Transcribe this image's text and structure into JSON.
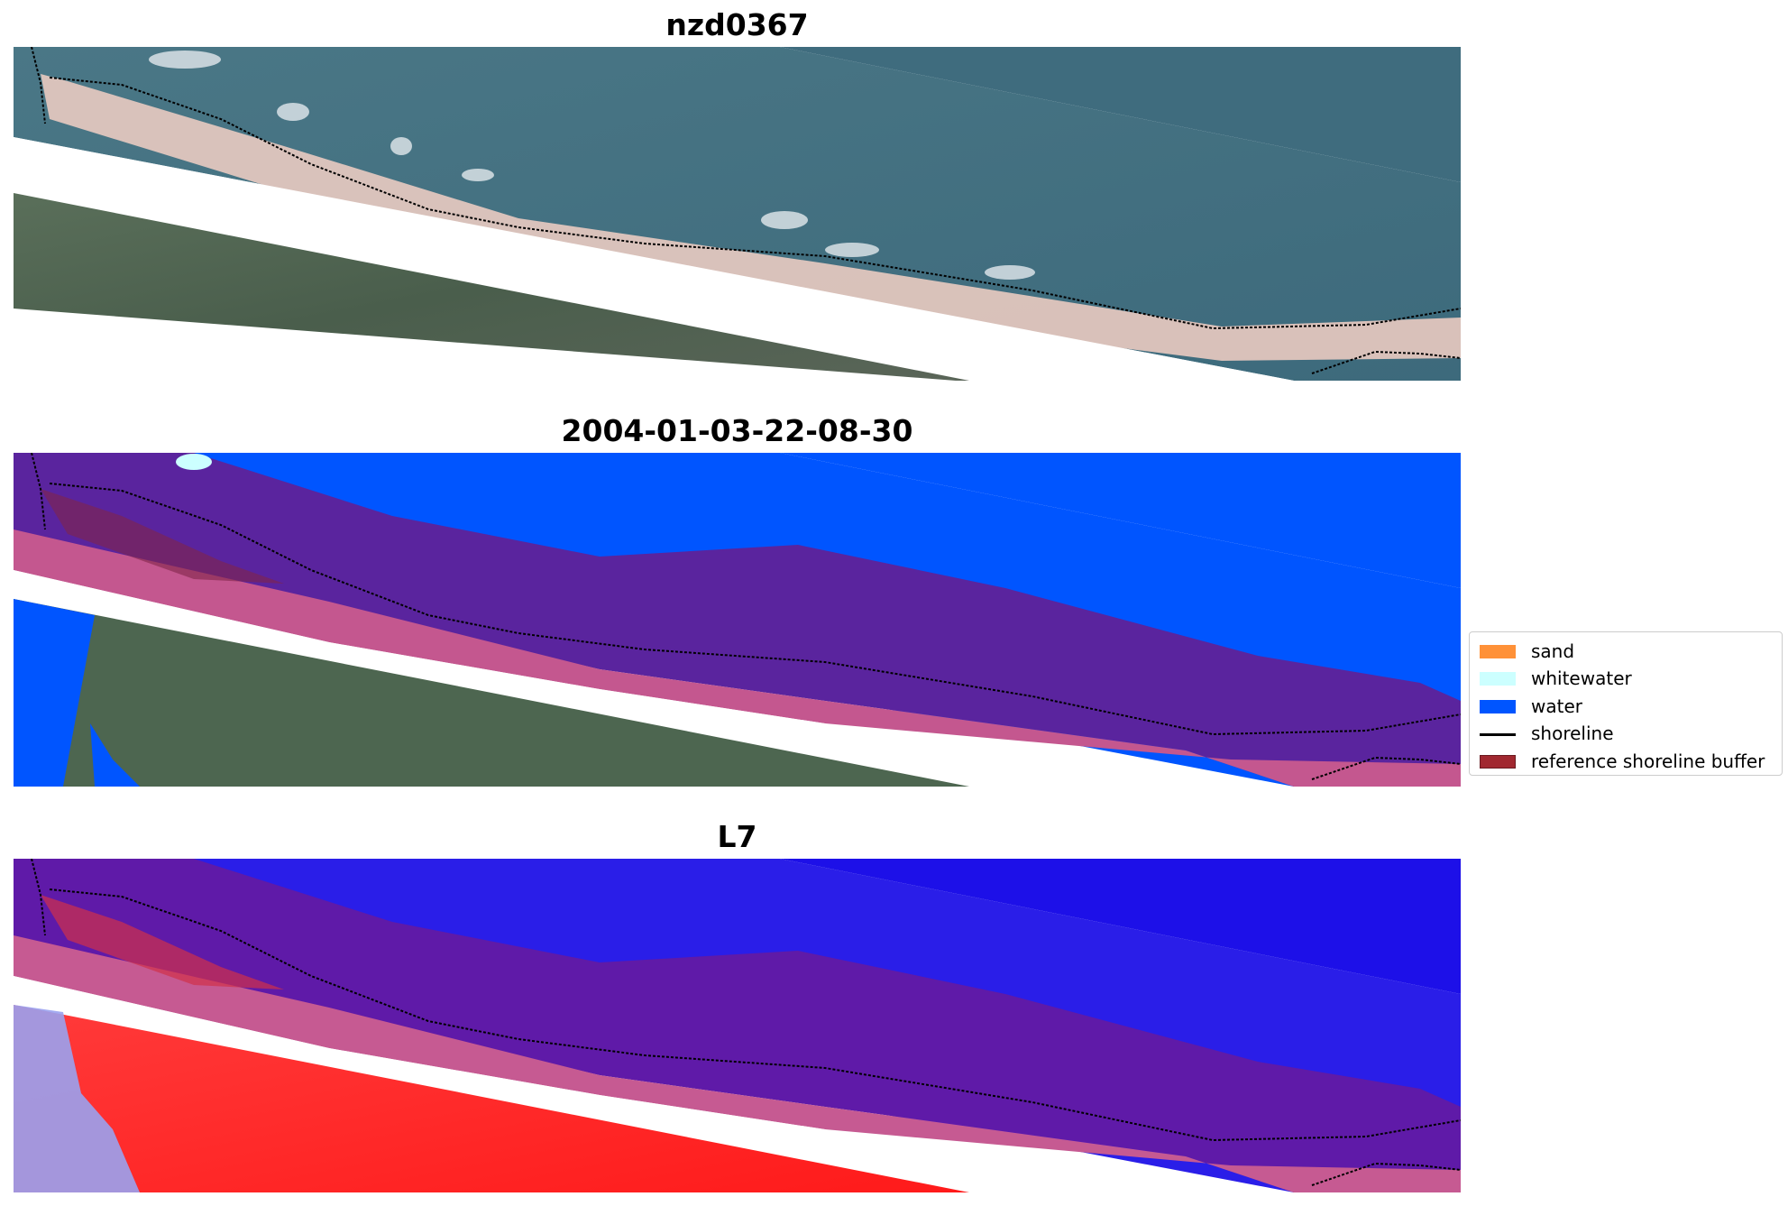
{
  "panels": [
    {
      "title": "nzd0367",
      "kind": "rgb"
    },
    {
      "title": "2004-01-03-22-08-30",
      "kind": "classified"
    },
    {
      "title": "L7",
      "kind": "index"
    }
  ],
  "legend": {
    "items": [
      {
        "label": "sand",
        "color": "#ff9138",
        "kind": "patch"
      },
      {
        "label": "whitewater",
        "color": "#ccffff",
        "kind": "patch"
      },
      {
        "label": "water",
        "color": "#0055ff",
        "kind": "patch"
      },
      {
        "label": "shoreline",
        "color": "#000000",
        "kind": "line"
      },
      {
        "label": "reference shoreline buffer",
        "color": "#a12830",
        "kind": "patch"
      }
    ]
  },
  "colors": {
    "sea_rgb": "#3f6e80",
    "land_rgb": "#4d6650",
    "beach_rgb": "#e0c2b8",
    "water_class": "#0055ff",
    "buffer_overlay": "#5a249e",
    "pink_overlay": "#c4578f",
    "index_blue": "#2a1ee8",
    "index_red": "#ff2020"
  }
}
